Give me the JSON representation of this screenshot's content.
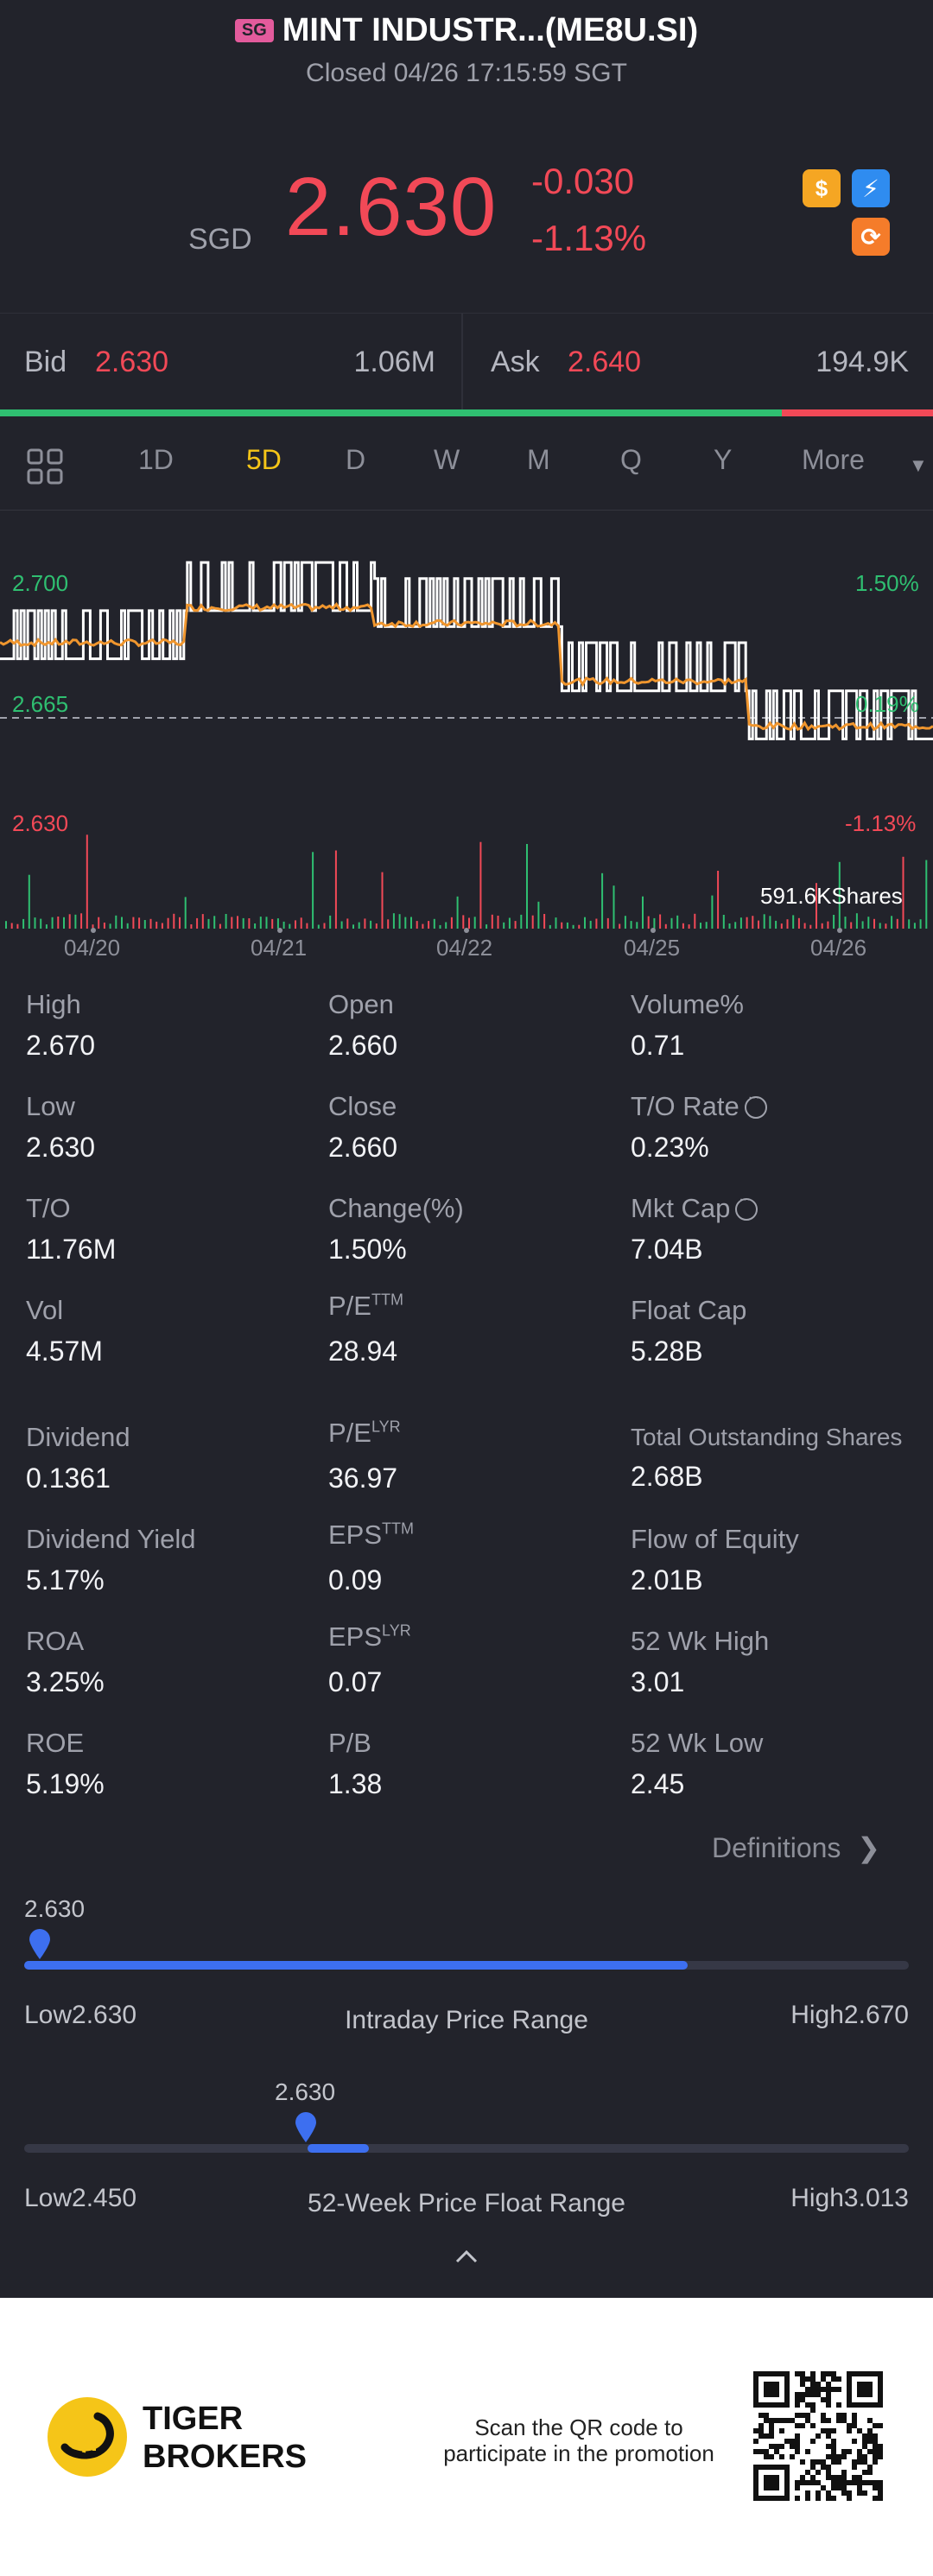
{
  "header": {
    "market_badge": "SG",
    "title": "MINT INDUSTR...(ME8U.SI)",
    "status": "Closed 04/26 17:15:59 SGT"
  },
  "quote": {
    "currency": "SGD",
    "price": "2.630",
    "change": "-0.030",
    "change_pct": "-1.13%",
    "icons": [
      "dollar-icon",
      "lightning-icon",
      "refresh-icon"
    ]
  },
  "bid_ask": {
    "bid_label": "Bid",
    "bid_price": "2.630",
    "bid_volume": "1.06M",
    "ask_label": "Ask",
    "ask_price": "2.640",
    "ask_volume": "194.9K",
    "bid_share": 0.84
  },
  "tabs": {
    "items": [
      "1D",
      "5D",
      "D",
      "W",
      "M",
      "Q",
      "Y",
      "More"
    ],
    "active": "5D"
  },
  "chart": {
    "y_top": "2.700",
    "y_mid": "2.665",
    "y_bot": "2.630",
    "pct_top": "1.50%",
    "pct_mid": "0.19%",
    "pct_bot": "-1.13%",
    "volume_label": "591.6KShares",
    "dates": [
      "04/20",
      "04/21",
      "04/22",
      "04/25",
      "04/26"
    ]
  },
  "chart_data": {
    "type": "line",
    "x": [
      "04/20",
      "04/21",
      "04/22",
      "04/25",
      "04/26"
    ],
    "series": [
      {
        "values": [
          2.675,
          2.69,
          2.685,
          2.665,
          2.65
        ]
      },
      {
        "values": [
          2.672,
          2.683,
          2.678,
          2.66,
          2.646
        ]
      }
    ],
    "ylim": [
      2.63,
      2.7
    ],
    "baseline": 2.665
  },
  "stats": {
    "high_label": "High",
    "high": "2.670",
    "open_label": "Open",
    "open": "2.660",
    "volpct_label": "Volume%",
    "volpct": "0.71",
    "low_label": "Low",
    "low": "2.630",
    "close_label": "Close",
    "close": "2.660",
    "torate_label": "T/O Rate",
    "torate": "0.23%",
    "to_label": "T/O",
    "to": "11.76M",
    "change_label": "Change(%)",
    "change": "1.50%",
    "mktcap_label": "Mkt Cap",
    "mktcap": "7.04B",
    "vol_label": "Vol",
    "vol": "4.57M",
    "pe_ttm_label": "P/E",
    "pe_ttm_sup": "TTM",
    "pe_ttm": "28.94",
    "floatcap_label": "Float Cap",
    "floatcap": "5.28B",
    "dividend_label": "Dividend",
    "dividend": "0.1361",
    "pe_lyr_label": "P/E",
    "pe_lyr_sup": "LYR",
    "pe_lyr": "36.97",
    "tos_label": "Total Outstanding Shares",
    "tos": "2.68B",
    "divyield_label": "Dividend Yield",
    "divyield": "5.17%",
    "eps_ttm_label": "EPS",
    "eps_ttm_sup": "TTM",
    "eps_ttm": "0.09",
    "foe_label": "Flow of Equity",
    "foe": "2.01B",
    "roa_label": "ROA",
    "roa": "3.25%",
    "eps_lyr_label": "EPS",
    "eps_lyr_sup": "LYR",
    "eps_lyr": "0.07",
    "wk52h_label": "52 Wk High",
    "wk52h": "3.01",
    "roe_label": "ROE",
    "roe": "5.19%",
    "pb_label": "P/B",
    "pb": "1.38",
    "wk52l_label": "52 Wk Low",
    "wk52l": "2.45"
  },
  "definitions_label": "Definitions",
  "intraday": {
    "marker": "2.630",
    "low": "Low2.630",
    "title": "Intraday Price Range",
    "high": "High2.670",
    "fill_fraction": 0.75,
    "marker_fraction": 0.0
  },
  "week52": {
    "marker": "2.630",
    "low": "Low2.450",
    "title": "52-Week Price Float Range",
    "high": "High3.013",
    "marker_fraction": 0.32,
    "fill_fraction": 0.07
  },
  "footer": {
    "brand_line1": "TIGER",
    "brand_line2": "BROKERS",
    "scan_line1": "Scan the QR code to",
    "scan_line2": "participate in the promotion"
  },
  "colors": {
    "up": "#2fbf71",
    "down": "#f24957",
    "accent": "#f5c518",
    "range": "#3d6ff0"
  }
}
